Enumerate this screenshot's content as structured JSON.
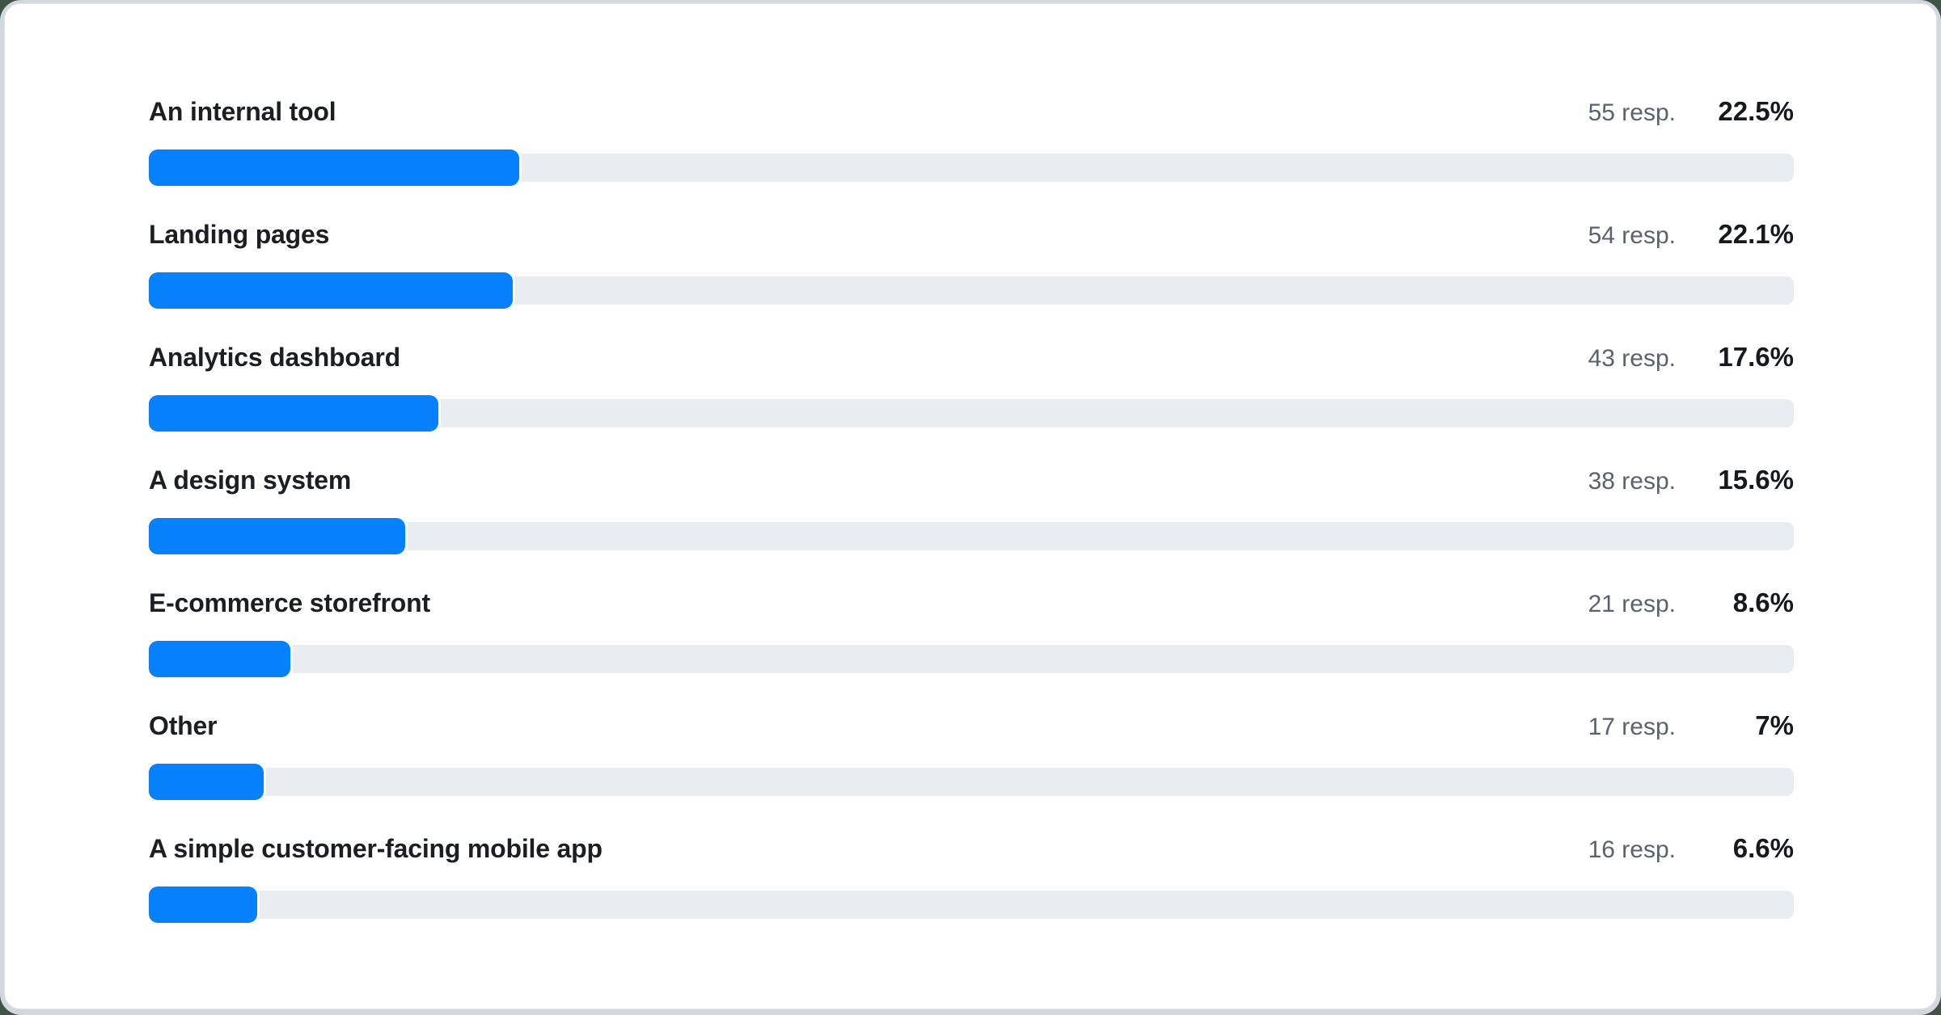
{
  "colors": {
    "page_outer": "#3f5347",
    "page_surface": "#d2d8dd",
    "card_bg": "#ffffff",
    "card_border": "#e0e4e8",
    "bar_fill": "#0680fb",
    "bar_track": "#e9edf2",
    "label_text": "#1b1e22",
    "count_text": "#59626d",
    "percent_text": "#16191d"
  },
  "chart_data": {
    "type": "bar",
    "orientation": "horizontal",
    "title": "",
    "unit_label": "resp.",
    "categories": [
      "An internal tool",
      "Landing pages",
      "Analytics dashboard",
      "A design system",
      "E-commerce storefront",
      "Other",
      "A simple customer-facing mobile app"
    ],
    "responses": [
      55,
      54,
      43,
      38,
      21,
      17,
      16
    ],
    "values": [
      22.5,
      22.1,
      17.6,
      15.6,
      8.6,
      7,
      6.6
    ],
    "percent_labels": [
      "22.5%",
      "22.1%",
      "17.6%",
      "15.6%",
      "8.6%",
      "7%",
      "6.6%"
    ],
    "count_labels": [
      "55 resp.",
      "54 resp.",
      "43 resp.",
      "38 resp.",
      "21 resp.",
      "17 resp.",
      "16 resp."
    ],
    "xlim": [
      0,
      100
    ],
    "grid": false,
    "legend": false
  }
}
